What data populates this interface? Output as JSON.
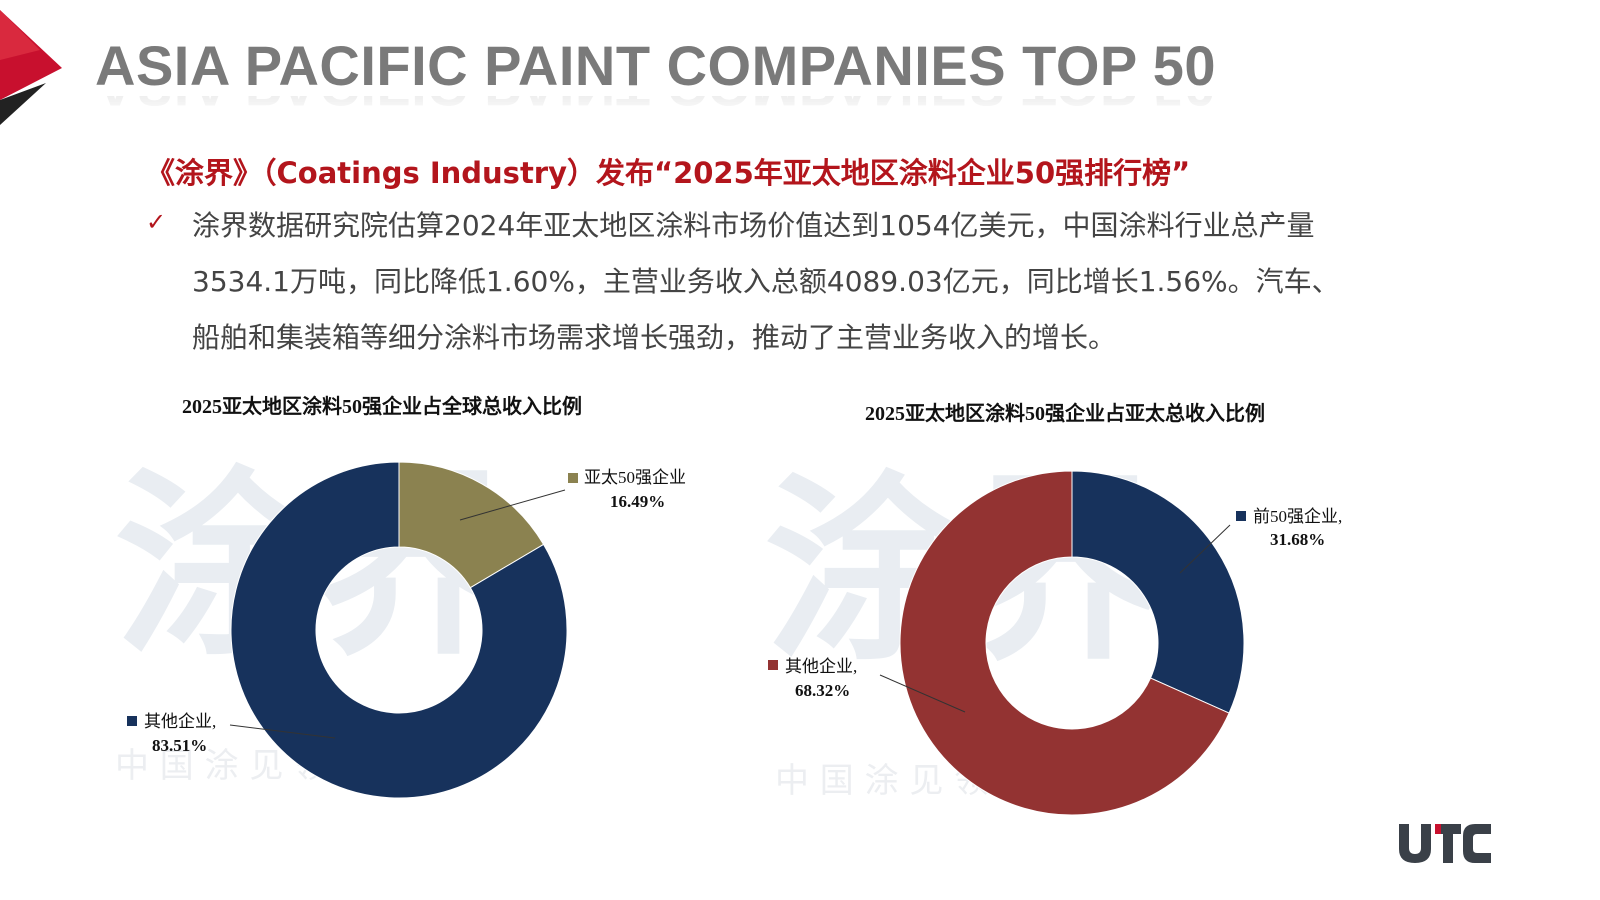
{
  "header": {
    "title": "ASIA PACIFIC PAINT COMPANIES TOP 50"
  },
  "headline": "《涂界》（Coatings Industry）发布“2025年亚太地区涂料企业50强排行榜”",
  "bullet": {
    "icon": "check-icon",
    "lines": [
      "涂界数据研究院估算2024年亚太地区涂料市场价值达到1054亿美元，中国涂料行业总产量",
      "3534.1万吨，同比降低1.60%，主营业务收入总额4089.03亿元，同比增长1.56%。汽车、",
      "船舶和集装箱等细分涂料市场需求增长强劲，推动了主营业务收入的增长。"
    ]
  },
  "watermark": {
    "big": "涂界",
    "small": "中 国 涂 见 领 袖"
  },
  "chart_data": [
    {
      "type": "pie",
      "donut": true,
      "title": "2025亚太地区涂料50强企业占全球总收入比例",
      "slices": [
        {
          "label": "亚太50强企业",
          "value_text": "16.49%",
          "value": 16.49,
          "color": "#8b8250"
        },
        {
          "label": "其他企业,",
          "value_text": "83.51%",
          "value": 83.51,
          "color": "#17325c"
        }
      ]
    },
    {
      "type": "pie",
      "donut": true,
      "title": "2025亚太地区涂料50强企业占亚太总收入比例",
      "slices": [
        {
          "label": "前50强企业,",
          "value_text": "31.68%",
          "value": 31.68,
          "color": "#17325c"
        },
        {
          "label": "其他企业,",
          "value_text": "68.32%",
          "value": 68.32,
          "color": "#933332"
        }
      ]
    }
  ],
  "logo": {
    "text": "UTC",
    "color": "#3a4048",
    "accent": "#c8102e"
  },
  "colors": {
    "accent_red": "#b3151c",
    "title_gray": "#7a7a7a"
  }
}
